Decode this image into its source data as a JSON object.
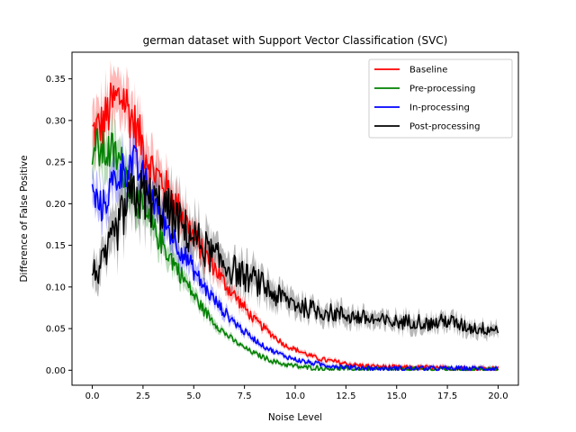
{
  "chart_data": {
    "type": "line",
    "title": "german dataset with Support Vector Classification (SVC)",
    "xlabel": "Noise Level",
    "ylabel": "Difference of False Positive",
    "xlim": [
      -1.0,
      21.0
    ],
    "ylim": [
      -0.018,
      0.382
    ],
    "xticks": [
      0.0,
      2.5,
      5.0,
      7.5,
      10.0,
      12.5,
      15.0,
      17.5,
      20.0
    ],
    "xtick_labels": [
      "0.0",
      "2.5",
      "5.0",
      "7.5",
      "10.0",
      "12.5",
      "15.0",
      "17.5",
      "20.0"
    ],
    "yticks": [
      0.0,
      0.05,
      0.1,
      0.15,
      0.2,
      0.25,
      0.3,
      0.35
    ],
    "ytick_labels": [
      "0.00",
      "0.05",
      "0.10",
      "0.15",
      "0.20",
      "0.25",
      "0.30",
      "0.35"
    ],
    "grid": false,
    "legend_position": "top-right",
    "x": [
      0,
      0.5,
      1,
      1.5,
      2,
      2.5,
      3,
      3.5,
      4,
      4.5,
      5,
      5.5,
      6,
      6.5,
      7,
      7.5,
      8,
      8.5,
      9,
      9.5,
      10,
      10.5,
      11,
      11.5,
      12,
      12.5,
      13,
      13.5,
      14,
      14.5,
      15,
      15.5,
      16,
      16.5,
      17,
      17.5,
      18,
      18.5,
      19,
      19.5,
      20
    ],
    "series": [
      {
        "name": "Baseline",
        "color": "#ff0000",
        "values": [
          0.285,
          0.295,
          0.32,
          0.33,
          0.3,
          0.27,
          0.24,
          0.225,
          0.205,
          0.185,
          0.16,
          0.14,
          0.125,
          0.105,
          0.09,
          0.075,
          0.06,
          0.05,
          0.04,
          0.03,
          0.025,
          0.02,
          0.015,
          0.012,
          0.01,
          0.008,
          0.006,
          0.005,
          0.004,
          0.004,
          0.003,
          0.003,
          0.003,
          0.003,
          0.002,
          0.002,
          0.002,
          0.002,
          0.002,
          0.002,
          0.002
        ]
      },
      {
        "name": "Pre-processing",
        "color": "#008000",
        "values": [
          0.27,
          0.262,
          0.262,
          0.245,
          0.215,
          0.19,
          0.17,
          0.15,
          0.13,
          0.11,
          0.09,
          0.072,
          0.058,
          0.045,
          0.035,
          0.027,
          0.02,
          0.015,
          0.01,
          0.007,
          0.005,
          0.003,
          0.003,
          0.002,
          0.002,
          0.002,
          0.001,
          0.001,
          0.001,
          0.001,
          0.001,
          0.001,
          0.001,
          0.001,
          0.001,
          0.001,
          0.001,
          0.001,
          0.001,
          0.001,
          0.001
        ]
      },
      {
        "name": "In-processing",
        "color": "#0000ff",
        "values": [
          0.21,
          0.195,
          0.225,
          0.24,
          0.25,
          0.23,
          0.205,
          0.18,
          0.16,
          0.14,
          0.12,
          0.1,
          0.085,
          0.07,
          0.058,
          0.046,
          0.037,
          0.028,
          0.022,
          0.017,
          0.013,
          0.01,
          0.008,
          0.006,
          0.005,
          0.004,
          0.003,
          0.003,
          0.002,
          0.002,
          0.002,
          0.002,
          0.002,
          0.002,
          0.002,
          0.002,
          0.002,
          0.002,
          0.002,
          0.002,
          0.002
        ]
      },
      {
        "name": "Post-processing",
        "color": "#000000",
        "values": [
          0.115,
          0.125,
          0.155,
          0.185,
          0.21,
          0.21,
          0.2,
          0.195,
          0.185,
          0.17,
          0.16,
          0.148,
          0.135,
          0.128,
          0.12,
          0.112,
          0.108,
          0.1,
          0.09,
          0.085,
          0.08,
          0.075,
          0.072,
          0.07,
          0.068,
          0.066,
          0.064,
          0.062,
          0.06,
          0.058,
          0.058,
          0.058,
          0.06,
          0.055,
          0.057,
          0.06,
          0.055,
          0.052,
          0.05,
          0.05,
          0.05
        ]
      }
    ]
  }
}
